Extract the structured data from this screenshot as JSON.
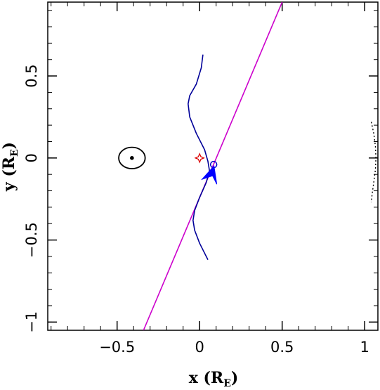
{
  "chart_data": {
    "type": "line",
    "title": "",
    "xlabel": {
      "main": "x (R",
      "sub": "E",
      "close": ")"
    },
    "ylabel": {
      "main": "y (R",
      "sub": "E",
      "close": ")"
    },
    "xlim": [
      -0.92,
      1.08
    ],
    "ylim": [
      -1.05,
      0.95
    ],
    "x_ticks": [
      {
        "value": -0.5,
        "label": "−0.5"
      },
      {
        "value": 0,
        "label": "0"
      },
      {
        "value": 0.5,
        "label": "0.5"
      },
      {
        "value": 1,
        "label": "1"
      }
    ],
    "y_ticks": [
      {
        "value": 0.5,
        "label": "0.5"
      },
      {
        "value": 0,
        "label": "0"
      },
      {
        "value": -0.5,
        "label": "−0.5"
      },
      {
        "value": -1,
        "label": "−1"
      }
    ],
    "minor_tick_step": 0.1,
    "grid": false,
    "series": [
      {
        "color": "#cc00cc",
        "points": [
          [
            -0.34,
            -1.05
          ],
          [
            0.5,
            0.95
          ]
        ]
      },
      {
        "color": "#000099",
        "points": [
          [
            0.02,
            0.63
          ],
          [
            0.01,
            0.55
          ],
          [
            -0.02,
            0.45
          ],
          [
            -0.06,
            0.38
          ],
          [
            -0.07,
            0.33
          ],
          [
            -0.06,
            0.25
          ],
          [
            -0.02,
            0.15
          ],
          [
            0.03,
            0.05
          ],
          [
            0.05,
            -0.02
          ],
          [
            0.06,
            -0.08
          ],
          [
            0.04,
            -0.15
          ],
          [
            0.0,
            -0.24
          ],
          [
            -0.03,
            -0.32
          ],
          [
            -0.04,
            -0.38
          ],
          [
            -0.03,
            -0.44
          ],
          [
            0.0,
            -0.52
          ],
          [
            0.03,
            -0.58
          ],
          [
            0.05,
            -0.62
          ]
        ]
      }
    ],
    "markers": [
      {
        "type": "circle-ring",
        "x": -0.41,
        "y": 0.0,
        "rx": 0.08,
        "ry": 0.065,
        "color": "#000000"
      },
      {
        "type": "dot",
        "x": -0.41,
        "y": 0.0,
        "color": "#000000"
      },
      {
        "type": "star4",
        "x": 0.0,
        "y": 0.0,
        "color": "#dd0000"
      },
      {
        "type": "open-circle",
        "x": 0.085,
        "y": -0.04,
        "color": "#0000cc"
      },
      {
        "type": "arrowhead",
        "x": 0.07,
        "y": -0.1,
        "color": "#0000ff"
      }
    ],
    "right_dotted_curve": {
      "color": "#000000",
      "points": [
        [
          1.04,
          0.22
        ],
        [
          1.055,
          0.15
        ],
        [
          1.065,
          0.07
        ],
        [
          1.068,
          0.0
        ],
        [
          1.065,
          -0.07
        ],
        [
          1.055,
          -0.15
        ],
        [
          1.045,
          -0.22
        ],
        [
          1.04,
          -0.27
        ]
      ]
    }
  }
}
